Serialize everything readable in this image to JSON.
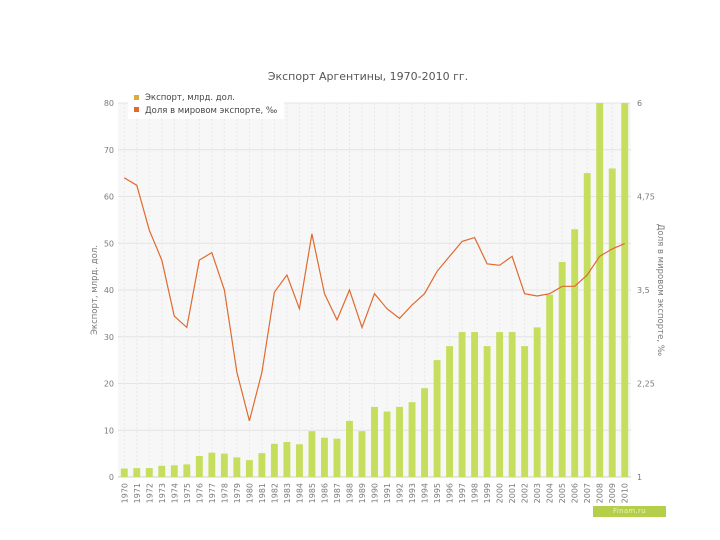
{
  "chart_data": {
    "type": "bar",
    "title": "Экспорт Аргентины, 1970-2010 гг.",
    "categories": [
      "1970",
      "1971",
      "1972",
      "1973",
      "1974",
      "1975",
      "1976",
      "1977",
      "1978",
      "1979",
      "1980",
      "1981",
      "1982",
      "1983",
      "1984",
      "1985",
      "1986",
      "1987",
      "1988",
      "1989",
      "1990",
      "1991",
      "1992",
      "1993",
      "1994",
      "1995",
      "1996",
      "1997",
      "1998",
      "1999",
      "2000",
      "2001",
      "2002",
      "2003",
      "2004",
      "2005",
      "2006",
      "2007",
      "2008",
      "2009",
      "2010"
    ],
    "series": [
      {
        "name": "Экспорт, млрд. дол.",
        "type": "bar",
        "axis": "left",
        "color": "#c5de5e",
        "values": [
          1.8,
          1.9,
          1.9,
          2.4,
          2.5,
          2.7,
          4.5,
          5.2,
          5.0,
          4.2,
          3.6,
          5.1,
          7.1,
          7.5,
          7.0,
          9.8,
          8.4,
          8.2,
          12.0,
          9.8,
          15.0,
          14.0,
          15.0,
          16.0,
          19.0,
          25.0,
          28.0,
          31.0,
          31.0,
          28.0,
          31.0,
          31.0,
          28.0,
          32.0,
          39.0,
          46.0,
          53.0,
          65.0,
          80.0,
          66.0,
          80.0
        ]
      },
      {
        "name": "Доля в мировом экспорте, ‰",
        "type": "line",
        "axis": "right",
        "color": "#e06a2e",
        "values": [
          5.0,
          4.9,
          4.3,
          3.9,
          3.15,
          3.0,
          3.9,
          4.0,
          3.5,
          2.4,
          1.75,
          2.4,
          3.47,
          3.7,
          3.25,
          4.25,
          3.45,
          3.1,
          3.5,
          3.0,
          3.45,
          3.25,
          3.12,
          3.3,
          3.45,
          3.75,
          3.95,
          4.15,
          4.2,
          3.85,
          3.83,
          3.95,
          3.45,
          3.42,
          3.45,
          3.55,
          3.55,
          3.7,
          3.95,
          4.05,
          4.12
        ]
      }
    ],
    "ylabel": "Экспорт, млрд. дол.",
    "y2label": "Доля в мировом экспорте, ‰",
    "ylim": [
      0,
      80
    ],
    "y2lim": [
      1,
      6
    ],
    "yticks": [
      "0",
      "10",
      "20",
      "30",
      "40",
      "50",
      "60",
      "70",
      "80"
    ],
    "y2ticks": [
      "1",
      "2,25",
      "3,5",
      "4,75",
      "6"
    ],
    "grid": true,
    "legend_position": "top-left"
  },
  "watermark": "Finam.ru"
}
